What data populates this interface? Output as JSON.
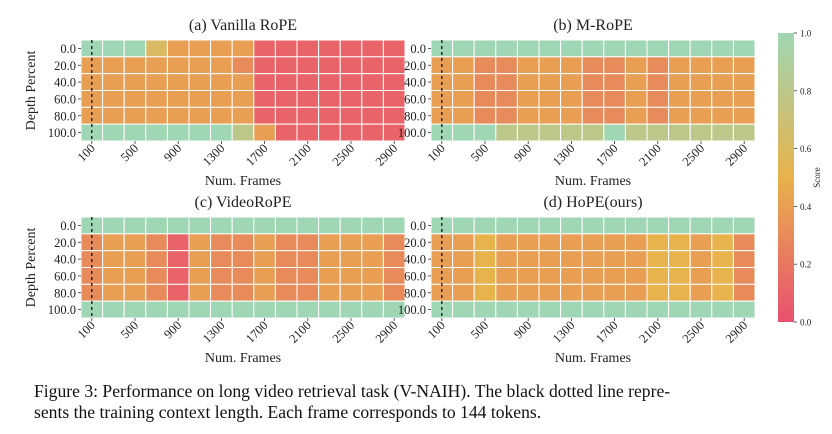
{
  "chart_data": {
    "type": "heatmap",
    "x_ticks": [
      "100",
      "500",
      "900",
      "1300",
      "1700",
      "2100",
      "2500",
      "2900"
    ],
    "y_ticks": [
      "0.0",
      "20.0",
      "40.0",
      "60.0",
      "80.0",
      "100.0"
    ],
    "x_label": "Num. Frames",
    "y_label": "Depth Percent",
    "num_columns": 15,
    "num_rows": 6,
    "training_context_frames": 100,
    "colorbar": {
      "label": "Score",
      "ticks": [
        "0.0",
        "0.2",
        "0.4",
        "0.6",
        "0.8",
        "1.0"
      ],
      "range": [
        0,
        1
      ],
      "low_color": "#e8506f",
      "mid_color": "#e8b24c",
      "high_color": "#9fd6b3"
    },
    "panels": [
      {
        "title": "(a) Vanilla RoPE",
        "scores": [
          [
            1.0,
            1.0,
            1.0,
            0.6,
            0.4,
            0.4,
            0.4,
            0.4,
            0.1,
            0.1,
            0.1,
            0.1,
            0.1,
            0.1,
            0.1
          ],
          [
            0.4,
            0.4,
            0.4,
            0.4,
            0.4,
            0.4,
            0.4,
            0.3,
            0.1,
            0.1,
            0.1,
            0.1,
            0.1,
            0.1,
            0.1
          ],
          [
            0.4,
            0.4,
            0.4,
            0.4,
            0.4,
            0.4,
            0.4,
            0.4,
            0.1,
            0.1,
            0.1,
            0.1,
            0.1,
            0.1,
            0.1
          ],
          [
            0.4,
            0.4,
            0.4,
            0.4,
            0.4,
            0.4,
            0.4,
            0.4,
            0.1,
            0.1,
            0.1,
            0.1,
            0.1,
            0.1,
            0.1
          ],
          [
            0.4,
            0.4,
            0.4,
            0.4,
            0.4,
            0.4,
            0.4,
            0.4,
            0.1,
            0.1,
            0.1,
            0.1,
            0.1,
            0.1,
            0.1
          ],
          [
            1.0,
            1.0,
            1.0,
            1.0,
            1.0,
            1.0,
            1.0,
            0.8,
            0.4,
            0.1,
            0.1,
            0.1,
            0.1,
            0.1,
            0.1
          ]
        ]
      },
      {
        "title": "(b) M-RoPE",
        "scores": [
          [
            1.0,
            1.0,
            1.0,
            1.0,
            1.0,
            1.0,
            1.0,
            1.0,
            1.0,
            1.0,
            1.0,
            1.0,
            1.0,
            1.0,
            1.0
          ],
          [
            0.4,
            0.4,
            0.3,
            0.3,
            0.4,
            0.4,
            0.4,
            0.3,
            0.3,
            0.4,
            0.3,
            0.4,
            0.4,
            0.4,
            0.4
          ],
          [
            0.4,
            0.4,
            0.3,
            0.3,
            0.4,
            0.4,
            0.4,
            0.3,
            0.3,
            0.4,
            0.3,
            0.4,
            0.4,
            0.4,
            0.4
          ],
          [
            0.4,
            0.4,
            0.3,
            0.3,
            0.4,
            0.4,
            0.4,
            0.3,
            0.3,
            0.4,
            0.3,
            0.4,
            0.4,
            0.4,
            0.4
          ],
          [
            0.4,
            0.4,
            0.3,
            0.3,
            0.4,
            0.4,
            0.4,
            0.3,
            0.3,
            0.4,
            0.3,
            0.4,
            0.4,
            0.4,
            0.4
          ],
          [
            1.0,
            1.0,
            1.0,
            0.8,
            0.8,
            0.8,
            0.8,
            0.8,
            1.0,
            0.8,
            0.8,
            0.8,
            0.8,
            0.8,
            0.8
          ]
        ]
      },
      {
        "title": "(c) VideoRoPE",
        "scores": [
          [
            1.0,
            1.0,
            1.0,
            1.0,
            1.0,
            1.0,
            1.0,
            1.0,
            1.0,
            1.0,
            1.0,
            1.0,
            1.0,
            1.0,
            1.0
          ],
          [
            0.3,
            0.4,
            0.4,
            0.3,
            0.1,
            0.4,
            0.3,
            0.3,
            0.4,
            0.3,
            0.3,
            0.4,
            0.4,
            0.4,
            0.3
          ],
          [
            0.3,
            0.4,
            0.4,
            0.3,
            0.1,
            0.4,
            0.3,
            0.3,
            0.4,
            0.3,
            0.3,
            0.4,
            0.4,
            0.4,
            0.3
          ],
          [
            0.3,
            0.4,
            0.4,
            0.3,
            0.1,
            0.4,
            0.3,
            0.3,
            0.4,
            0.3,
            0.3,
            0.4,
            0.4,
            0.4,
            0.3
          ],
          [
            0.3,
            0.4,
            0.4,
            0.3,
            0.1,
            0.4,
            0.3,
            0.3,
            0.4,
            0.3,
            0.3,
            0.4,
            0.4,
            0.4,
            0.3
          ],
          [
            1.0,
            1.0,
            1.0,
            1.0,
            1.0,
            1.0,
            1.0,
            1.0,
            1.0,
            1.0,
            1.0,
            1.0,
            1.0,
            1.0,
            1.0
          ]
        ]
      },
      {
        "title": "(d) HoPE(ours)",
        "scores": [
          [
            1.0,
            1.0,
            1.0,
            1.0,
            1.0,
            1.0,
            1.0,
            1.0,
            1.0,
            1.0,
            1.0,
            1.0,
            1.0,
            1.0,
            1.0
          ],
          [
            0.4,
            0.4,
            0.5,
            0.4,
            0.4,
            0.4,
            0.4,
            0.4,
            0.4,
            0.4,
            0.5,
            0.5,
            0.4,
            0.5,
            0.3
          ],
          [
            0.4,
            0.4,
            0.5,
            0.4,
            0.4,
            0.4,
            0.4,
            0.4,
            0.4,
            0.4,
            0.5,
            0.5,
            0.4,
            0.5,
            0.3
          ],
          [
            0.4,
            0.4,
            0.5,
            0.4,
            0.4,
            0.4,
            0.4,
            0.4,
            0.4,
            0.4,
            0.5,
            0.5,
            0.4,
            0.5,
            0.3
          ],
          [
            0.4,
            0.4,
            0.5,
            0.4,
            0.4,
            0.4,
            0.4,
            0.4,
            0.4,
            0.4,
            0.5,
            0.5,
            0.4,
            0.5,
            0.3
          ],
          [
            1.0,
            1.0,
            1.0,
            1.0,
            1.0,
            1.0,
            1.0,
            1.0,
            1.0,
            1.0,
            1.0,
            1.0,
            1.0,
            1.0,
            1.0
          ]
        ]
      }
    ]
  },
  "caption": {
    "line1": "Figure 3: Performance on long video retrieval task (V-NAIH). The black dotted line repre-",
    "line2": "sents the training context length. Each frame corresponds to 144 tokens."
  }
}
